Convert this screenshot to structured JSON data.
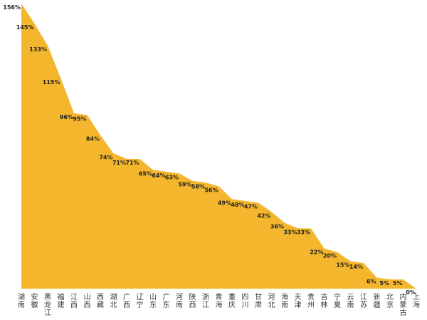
{
  "chart_data": {
    "type": "area",
    "title": "",
    "xlabel": "",
    "ylabel": "",
    "ylim": [
      0,
      156
    ],
    "grid": false,
    "color": "#F4B62C",
    "categories": [
      "湖南",
      "安徽",
      "黑龙江",
      "福建",
      "江西",
      "山西",
      "西藏",
      "湖北",
      "广西",
      "辽宁",
      "山东",
      "广东",
      "河南",
      "陕西",
      "浙江",
      "青海",
      "重庆",
      "四川",
      "甘肃",
      "河北",
      "海南",
      "天津",
      "贵州",
      "吉林",
      "宁夏",
      "云南",
      "江苏",
      "新疆",
      "北京",
      "内蒙古",
      "上海"
    ],
    "values": [
      156,
      145,
      133,
      115,
      96,
      95,
      84,
      74,
      71,
      71,
      65,
      64,
      63,
      59,
      58,
      56,
      49,
      48,
      47,
      42,
      36,
      33,
      33,
      22,
      20,
      15,
      14,
      6,
      5,
      5,
      0
    ],
    "value_labels": [
      "156%",
      "145%",
      "133%",
      "115%",
      "96%",
      "95%",
      "84%",
      "74%",
      "71%",
      "71%",
      "65%",
      "64%",
      "63%",
      "59%",
      "58%",
      "56%",
      "49%",
      "48%",
      "47%",
      "42%",
      "36%",
      "33%",
      "33%",
      "22%",
      "20%",
      "15%",
      "14%",
      "6%",
      "5%",
      "5%",
      "0%"
    ]
  }
}
